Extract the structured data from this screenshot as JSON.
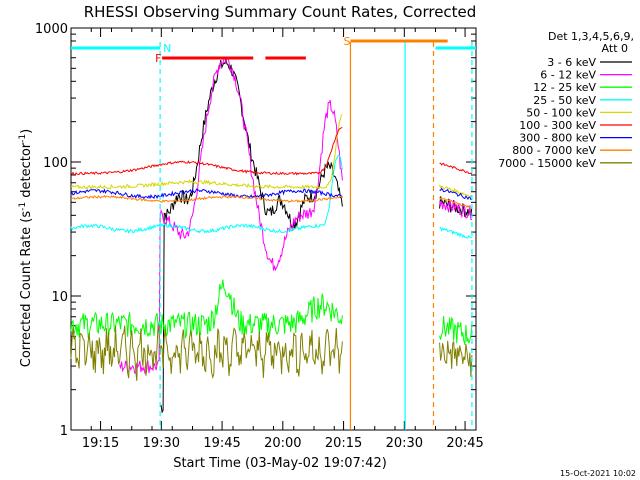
{
  "chart_data": {
    "type": "line",
    "title": "RHESSI Observing Summary Count Rates, Corrected",
    "xlabel": "Start Time (03-May-02 19:07:42)",
    "ylabel": "Corrected Count Rate (s",
    "ylabel_sup": "-1",
    "ylabel_tail": " detector",
    "ylabel_tail_sup": "-1",
    "ylabel_close": ")",
    "ylog": true,
    "xlim_minutes": [
      0,
      100
    ],
    "ylim": [
      1,
      1000
    ],
    "x_ticks": [
      {
        "label": "19:15",
        "minute": 7.3
      },
      {
        "label": "19:30",
        "minute": 22.3
      },
      {
        "label": "19:45",
        "minute": 37.3
      },
      {
        "label": "20:00",
        "minute": 52.3
      },
      {
        "label": "20:15",
        "minute": 67.3
      },
      {
        "label": "20:30",
        "minute": 82.3
      },
      {
        "label": "20:45",
        "minute": 97.3
      }
    ],
    "y_ticks": [
      {
        "label": "1",
        "value": 1
      },
      {
        "label": "10",
        "value": 10
      },
      {
        "label": "100",
        "value": 100
      },
      {
        "label": "1000",
        "value": 1000
      }
    ],
    "legend": {
      "header": "Det 1,3,4,5,6,9,",
      "subheader": "Att 0",
      "placement": "right"
    },
    "series": [
      {
        "name": "3 - 6 keV",
        "color": "#000000",
        "level": 50
      },
      {
        "name": "6 - 12 keV",
        "color": "#ff00ff",
        "level": 50
      },
      {
        "name": "12 - 25 keV",
        "color": "#00ff00",
        "level": 6
      },
      {
        "name": "25 - 50 keV",
        "color": "#00ffff",
        "level": 32
      },
      {
        "name": "50 - 100 keV",
        "color": "#d6d600",
        "level": 66
      },
      {
        "name": "100 - 300 keV",
        "color": "#ff0000",
        "level": 85
      },
      {
        "name": "300 - 800 keV",
        "color": "#0000ff",
        "level": 60
      },
      {
        "name": "800 - 7000 keV",
        "color": "#ff8000",
        "level": 54
      },
      {
        "name": "7000 - 15000 keV",
        "color": "#808000",
        "level": 4
      }
    ],
    "flag_bars": [
      {
        "label": "N",
        "color": "#00ffff",
        "x0": 0,
        "x1": 22
      },
      {
        "label": "",
        "color": "#00ffff",
        "x0": 90,
        "x1": 100
      },
      {
        "label": "F",
        "color": "#ff0000",
        "x0": 22.5,
        "x1": 45
      },
      {
        "label": "",
        "color": "#ff0000",
        "x0": 48,
        "x1": 58
      },
      {
        "label": "S",
        "color": "#ff8000",
        "x0": 69,
        "x1": 93
      }
    ],
    "vlines": [
      {
        "minute": 22,
        "color": "#00ffff",
        "style": "dashed"
      },
      {
        "minute": 69,
        "color": "#ff8000",
        "style": "solid"
      },
      {
        "minute": 82.5,
        "color": "#00ffff",
        "style": "solid"
      },
      {
        "minute": 89.5,
        "color": "#ff8000",
        "style": "dashed"
      },
      {
        "minute": 99,
        "color": "#00ffff",
        "style": "dashed"
      }
    ],
    "timestamp": "15-Oct-2021 10:02"
  }
}
